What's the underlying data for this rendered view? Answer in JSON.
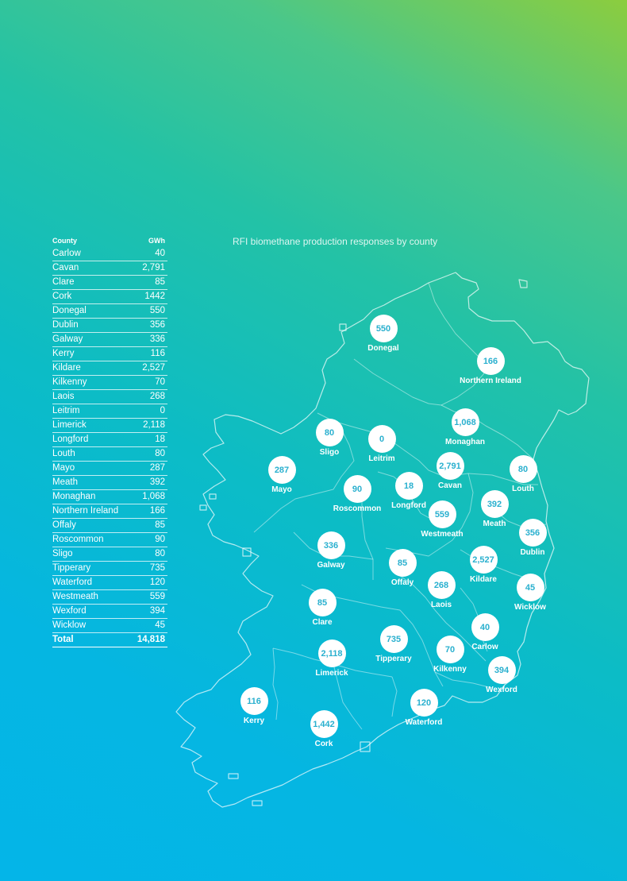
{
  "table": {
    "col_county": "County",
    "col_gwh": "GWh",
    "rows": [
      {
        "county": "Carlow",
        "gwh": "40"
      },
      {
        "county": "Cavan",
        "gwh": "2,791"
      },
      {
        "county": "Clare",
        "gwh": "85"
      },
      {
        "county": "Cork",
        "gwh": "1442"
      },
      {
        "county": "Donegal",
        "gwh": "550"
      },
      {
        "county": "Dublin",
        "gwh": "356"
      },
      {
        "county": "Galway",
        "gwh": "336"
      },
      {
        "county": "Kerry",
        "gwh": "116"
      },
      {
        "county": "Kildare",
        "gwh": "2,527"
      },
      {
        "county": "Kilkenny",
        "gwh": "70"
      },
      {
        "county": "Laois",
        "gwh": "268"
      },
      {
        "county": "Leitrim",
        "gwh": "0"
      },
      {
        "county": "Limerick",
        "gwh": "2,118"
      },
      {
        "county": "Longford",
        "gwh": "18"
      },
      {
        "county": "Louth",
        "gwh": "80"
      },
      {
        "county": "Mayo",
        "gwh": "287"
      },
      {
        "county": "Meath",
        "gwh": "392"
      },
      {
        "county": "Monaghan",
        "gwh": "1,068"
      },
      {
        "county": "Northern Ireland",
        "gwh": "166"
      },
      {
        "county": "Offaly",
        "gwh": "85"
      },
      {
        "county": "Roscommon",
        "gwh": "90"
      },
      {
        "county": "Sligo",
        "gwh": "80"
      },
      {
        "county": "Tipperary",
        "gwh": "735"
      },
      {
        "county": "Waterford",
        "gwh": "120"
      },
      {
        "county": "Westmeath",
        "gwh": "559"
      },
      {
        "county": "Wexford",
        "gwh": "394"
      },
      {
        "county": "Wicklow",
        "gwh": "45"
      }
    ],
    "total_label": "Total",
    "total_value": "14,818"
  },
  "map": {
    "title": "RFI biomethane production responses by county",
    "markers": [
      {
        "county": "Donegal",
        "value": "550"
      },
      {
        "county": "Northern Ireland",
        "value": "166"
      },
      {
        "county": "Monaghan",
        "value": "1,068"
      },
      {
        "county": "Sligo",
        "value": "80"
      },
      {
        "county": "Leitrim",
        "value": "0"
      },
      {
        "county": "Cavan",
        "value": "2,791"
      },
      {
        "county": "Louth",
        "value": "80"
      },
      {
        "county": "Mayo",
        "value": "287"
      },
      {
        "county": "Roscommon",
        "value": "90"
      },
      {
        "county": "Longford",
        "value": "18"
      },
      {
        "county": "Meath",
        "value": "392"
      },
      {
        "county": "Westmeath",
        "value": "559"
      },
      {
        "county": "Dublin",
        "value": "356"
      },
      {
        "county": "Galway",
        "value": "336"
      },
      {
        "county": "Offaly",
        "value": "85"
      },
      {
        "county": "Kildare",
        "value": "2,527"
      },
      {
        "county": "Laois",
        "value": "268"
      },
      {
        "county": "Wicklow",
        "value": "45"
      },
      {
        "county": "Clare",
        "value": "85"
      },
      {
        "county": "Carlow",
        "value": "40"
      },
      {
        "county": "Tipperary",
        "value": "735"
      },
      {
        "county": "Limerick",
        "value": "2,118"
      },
      {
        "county": "Kilkenny",
        "value": "70"
      },
      {
        "county": "Wexford",
        "value": "394"
      },
      {
        "county": "Kerry",
        "value": "116"
      },
      {
        "county": "Waterford",
        "value": "120"
      },
      {
        "county": "Cork",
        "value": "1,442"
      }
    ]
  },
  "colors": {
    "gradient_top": "#8ccd3e",
    "gradient_mid": "#0cbcc6",
    "gradient_bottom": "#04b5e8",
    "bubble_fill": "#ffffff",
    "bubble_text": "#2ab0cf"
  }
}
